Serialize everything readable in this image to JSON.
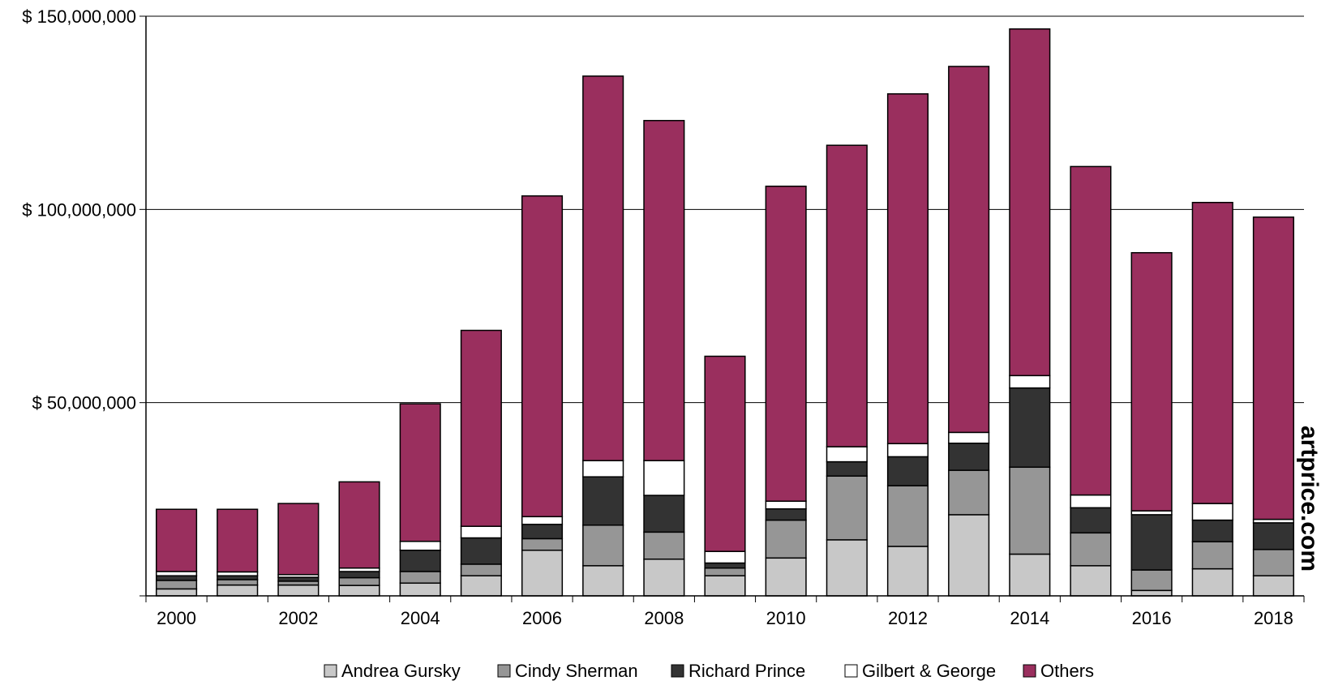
{
  "chart_data": {
    "type": "bar",
    "stacked": true,
    "categories": [
      "2000",
      "2001",
      "2002",
      "2003",
      "2004",
      "2005",
      "2006",
      "2007",
      "2008",
      "2009",
      "2010",
      "2011",
      "2012",
      "2013",
      "2014",
      "2015",
      "2016",
      "2017",
      "2018"
    ],
    "x_tick_labels": [
      "2000",
      "",
      "2002",
      "",
      "2004",
      "",
      "2006",
      "",
      "2008",
      "",
      "2010",
      "",
      "2012",
      "",
      "2014",
      "",
      "2016",
      "",
      "2018"
    ],
    "y_tick_labels": [
      "$ 150,000,000",
      "$ 100,000,000",
      "$ 50,000,000"
    ],
    "y_tick_values": [
      150000000,
      100000000,
      50000000
    ],
    "ylim": [
      0,
      150000000
    ],
    "grid": "horizontal",
    "legend_position": "bottom",
    "series": [
      {
        "name": "Andrea Gursky",
        "color": "#c8c8c8",
        "values": [
          1800000,
          2800000,
          2800000,
          2700000,
          3300000,
          5200000,
          11800000,
          7800000,
          9500000,
          5200000,
          9800000,
          14500000,
          12800000,
          21000000,
          10800000,
          7800000,
          1400000,
          7000000,
          5200000
        ]
      },
      {
        "name": "Cindy Sherman",
        "color": "#969696",
        "values": [
          2200000,
          1400000,
          1000000,
          2000000,
          3000000,
          3000000,
          3000000,
          10500000,
          7000000,
          2000000,
          9800000,
          16500000,
          15700000,
          11500000,
          22500000,
          8500000,
          5300000,
          7000000,
          6800000
        ]
      },
      {
        "name": "Richard Prince",
        "color": "#333333",
        "values": [
          1200000,
          1000000,
          1000000,
          1600000,
          5500000,
          6800000,
          3700000,
          12500000,
          9500000,
          1300000,
          2900000,
          3700000,
          7500000,
          7000000,
          20500000,
          6500000,
          14300000,
          5600000,
          6900000
        ]
      },
      {
        "name": "Gilbert & George",
        "color": "#ffffff",
        "values": [
          1100000,
          1000000,
          700000,
          900000,
          2300000,
          3000000,
          2000000,
          4200000,
          9000000,
          3000000,
          2000000,
          3900000,
          3400000,
          2800000,
          3200000,
          3300000,
          1000000,
          4300000,
          900000
        ]
      },
      {
        "name": "Others",
        "color": "#9a2f5e",
        "values": [
          16100000,
          16200000,
          18400000,
          22300000,
          35600000,
          50700000,
          83000000,
          99500000,
          88000000,
          50500000,
          81500000,
          78000000,
          90500000,
          94700000,
          89700000,
          85000000,
          66800000,
          77900000,
          78200000
        ]
      }
    ],
    "watermark": "artprice.com"
  }
}
